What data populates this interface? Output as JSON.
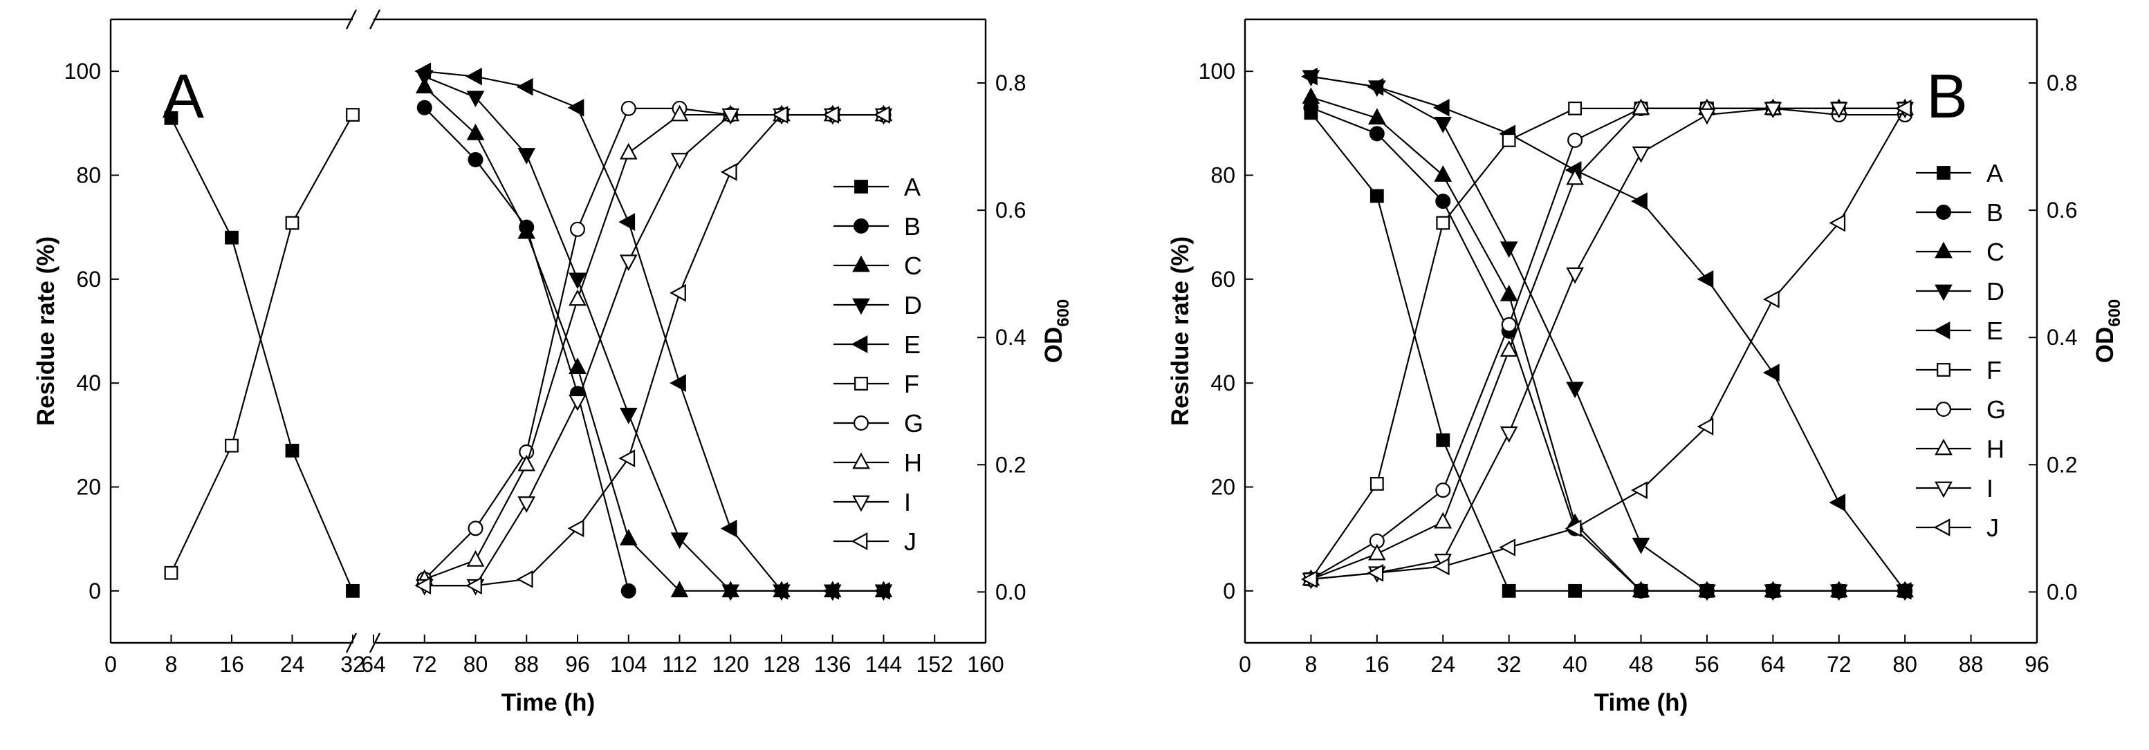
{
  "chart_data": [
    {
      "type": "line",
      "panel_label": "A",
      "xlabel": "Time (h)",
      "ylabel": "Residue rate (%)",
      "y2label_main": "OD",
      "y2label_sub": "600",
      "xlim": [
        0,
        160
      ],
      "ylim": [
        -10,
        110
      ],
      "y2lim": [
        -0.08,
        0.9
      ],
      "x_ticks": [
        0,
        8,
        16,
        24,
        32,
        64,
        72,
        80,
        88,
        96,
        104,
        112,
        120,
        128,
        136,
        144,
        152,
        160
      ],
      "y_ticks": [
        0,
        20,
        40,
        60,
        80,
        100
      ],
      "y2_ticks": [
        "0.0",
        "0.2",
        "0.4",
        "0.6",
        "0.8"
      ],
      "y2_tick_values": [
        0.0,
        0.2,
        0.4,
        0.6,
        0.8
      ],
      "axis_break_between": [
        32,
        64
      ],
      "legend": [
        "A",
        "B",
        "C",
        "D",
        "E",
        "F",
        "G",
        "H",
        "I",
        "J"
      ],
      "series": [
        {
          "name": "A",
          "marker": "square",
          "filled": true,
          "axis": "left",
          "x": [
            8,
            16,
            24,
            32
          ],
          "y": [
            91,
            68,
            27,
            0
          ]
        },
        {
          "name": "B",
          "marker": "circle",
          "filled": true,
          "axis": "left",
          "x": [
            72,
            80,
            88,
            96,
            104
          ],
          "y": [
            93,
            83,
            70,
            38,
            0
          ]
        },
        {
          "name": "C",
          "marker": "triangle-up",
          "filled": true,
          "axis": "left",
          "x": [
            72,
            80,
            88,
            96,
            104,
            112,
            120,
            128,
            136,
            144
          ],
          "y": [
            97,
            88,
            69,
            43,
            10,
            0,
            0,
            0,
            0,
            0
          ]
        },
        {
          "name": "D",
          "marker": "triangle-down",
          "filled": true,
          "axis": "left",
          "x": [
            72,
            80,
            88,
            96,
            104,
            112,
            120,
            128,
            136,
            144
          ],
          "y": [
            99,
            95,
            84,
            60,
            34,
            10,
            0,
            0,
            0,
            0
          ]
        },
        {
          "name": "E",
          "marker": "triangle-left",
          "filled": true,
          "axis": "left",
          "x": [
            72,
            80,
            88,
            96,
            104,
            112,
            120,
            128,
            136,
            144
          ],
          "y": [
            100,
            99,
            97,
            93,
            71,
            40,
            12,
            0,
            0,
            0
          ]
        },
        {
          "name": "F",
          "marker": "square",
          "filled": false,
          "axis": "right",
          "x": [
            8,
            16,
            24,
            32
          ],
          "y": [
            0.03,
            0.23,
            0.58,
            0.75
          ]
        },
        {
          "name": "G",
          "marker": "circle",
          "filled": false,
          "axis": "right",
          "x": [
            72,
            80,
            88,
            96,
            104,
            112,
            120,
            128,
            136,
            144
          ],
          "y": [
            0.02,
            0.1,
            0.22,
            0.57,
            0.76,
            0.76,
            0.75,
            0.75,
            0.75,
            0.75
          ]
        },
        {
          "name": "H",
          "marker": "triangle-up",
          "filled": false,
          "axis": "right",
          "x": [
            72,
            80,
            88,
            96,
            104,
            112,
            120,
            128,
            136,
            144
          ],
          "y": [
            0.02,
            0.05,
            0.2,
            0.46,
            0.69,
            0.75,
            0.75,
            0.75,
            0.75,
            0.75
          ]
        },
        {
          "name": "I",
          "marker": "triangle-down",
          "filled": false,
          "axis": "right",
          "x": [
            72,
            80,
            88,
            96,
            104,
            112,
            120,
            128,
            136,
            144
          ],
          "y": [
            0.01,
            0.01,
            0.14,
            0.3,
            0.52,
            0.68,
            0.75,
            0.75,
            0.75,
            0.75
          ]
        },
        {
          "name": "J",
          "marker": "triangle-left",
          "filled": false,
          "axis": "right",
          "x": [
            72,
            80,
            88,
            96,
            104,
            112,
            120,
            128,
            136,
            144
          ],
          "y": [
            0.01,
            0.01,
            0.02,
            0.1,
            0.21,
            0.47,
            0.66,
            0.75,
            0.75,
            0.75
          ]
        }
      ]
    },
    {
      "type": "line",
      "panel_label": "B",
      "xlabel": "Time (h)",
      "ylabel": "Residue rate (%)",
      "y2label_main": "OD",
      "y2label_sub": "600",
      "xlim": [
        0,
        96
      ],
      "ylim": [
        -10,
        110
      ],
      "y2lim": [
        -0.08,
        0.9
      ],
      "x_ticks": [
        0,
        8,
        16,
        24,
        32,
        40,
        48,
        56,
        64,
        72,
        80,
        88,
        96
      ],
      "y_ticks": [
        0,
        20,
        40,
        60,
        80,
        100
      ],
      "y2_ticks": [
        "0.0",
        "0.2",
        "0.4",
        "0.6",
        "0.8"
      ],
      "y2_tick_values": [
        0.0,
        0.2,
        0.4,
        0.6,
        0.8
      ],
      "legend": [
        "A",
        "B",
        "C",
        "D",
        "E",
        "F",
        "G",
        "H",
        "I",
        "J"
      ],
      "series": [
        {
          "name": "A",
          "marker": "square",
          "filled": true,
          "axis": "left",
          "x": [
            8,
            16,
            24,
            32,
            40,
            48,
            56,
            64,
            72,
            80
          ],
          "y": [
            92,
            76,
            29,
            0,
            0,
            0,
            0,
            0,
            0,
            0
          ]
        },
        {
          "name": "B",
          "marker": "circle",
          "filled": true,
          "axis": "left",
          "x": [
            8,
            16,
            24,
            32,
            40,
            48,
            56,
            64,
            72,
            80
          ],
          "y": [
            93,
            88,
            75,
            50,
            12,
            0,
            0,
            0,
            0,
            0
          ]
        },
        {
          "name": "C",
          "marker": "triangle-up",
          "filled": true,
          "axis": "left",
          "x": [
            8,
            16,
            24,
            32,
            40,
            48,
            56,
            64,
            72,
            80
          ],
          "y": [
            95,
            91,
            80,
            57,
            13,
            0,
            0,
            0,
            0,
            0
          ]
        },
        {
          "name": "D",
          "marker": "triangle-down",
          "filled": true,
          "axis": "left",
          "x": [
            8,
            16,
            24,
            32,
            40,
            48,
            56,
            64,
            72,
            80
          ],
          "y": [
            99,
            97,
            90,
            66,
            39,
            9,
            0,
            0,
            0,
            0
          ]
        },
        {
          "name": "E",
          "marker": "triangle-left",
          "filled": true,
          "axis": "left",
          "x": [
            8,
            16,
            24,
            32,
            40,
            48,
            56,
            64,
            72,
            80
          ],
          "y": [
            99,
            97,
            93,
            88,
            81,
            75,
            60,
            42,
            17,
            0
          ]
        },
        {
          "name": "F",
          "marker": "square",
          "filled": false,
          "axis": "right",
          "x": [
            8,
            16,
            24,
            32,
            40,
            48,
            56,
            64,
            72,
            80
          ],
          "y": [
            0.02,
            0.17,
            0.58,
            0.71,
            0.76,
            0.76,
            0.76,
            0.76,
            0.76,
            0.76
          ]
        },
        {
          "name": "G",
          "marker": "circle",
          "filled": false,
          "axis": "right",
          "x": [
            8,
            16,
            24,
            32,
            40,
            48,
            56,
            64,
            72,
            80
          ],
          "y": [
            0.02,
            0.08,
            0.16,
            0.42,
            0.71,
            0.76,
            0.76,
            0.76,
            0.75,
            0.75
          ]
        },
        {
          "name": "H",
          "marker": "triangle-up",
          "filled": false,
          "axis": "right",
          "x": [
            8,
            16,
            24,
            32,
            40,
            48,
            56,
            64,
            72,
            80
          ],
          "y": [
            0.02,
            0.06,
            0.11,
            0.38,
            0.65,
            0.76,
            0.76,
            0.76,
            0.76,
            0.76
          ]
        },
        {
          "name": "I",
          "marker": "triangle-down",
          "filled": false,
          "axis": "right",
          "x": [
            8,
            16,
            24,
            32,
            40,
            48,
            56,
            64,
            72,
            80
          ],
          "y": [
            0.02,
            0.03,
            0.05,
            0.25,
            0.5,
            0.69,
            0.75,
            0.76,
            0.76,
            0.76
          ]
        },
        {
          "name": "J",
          "marker": "triangle-left",
          "filled": false,
          "axis": "right",
          "x": [
            8,
            16,
            24,
            32,
            40,
            48,
            56,
            64,
            72,
            80
          ],
          "y": [
            0.02,
            0.03,
            0.04,
            0.07,
            0.1,
            0.16,
            0.26,
            0.46,
            0.58,
            0.76
          ]
        }
      ]
    }
  ]
}
